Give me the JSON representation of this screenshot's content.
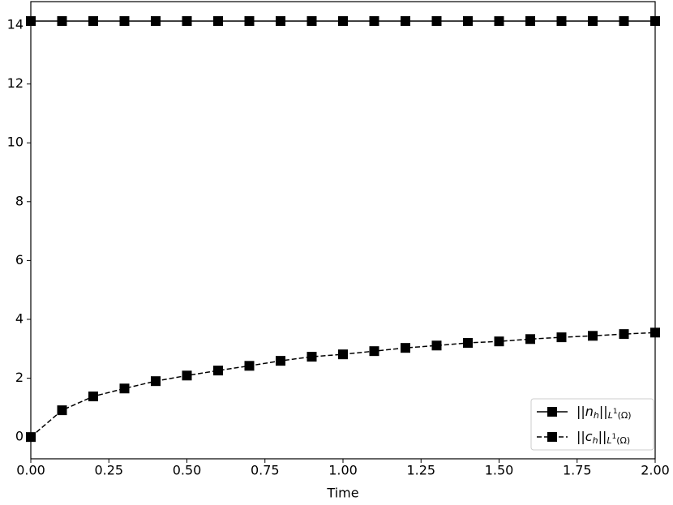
{
  "chart_data": {
    "type": "line",
    "xlabel": "Time",
    "x": [
      0,
      0.1,
      0.2,
      0.3,
      0.4,
      0.5,
      0.6,
      0.7,
      0.8,
      0.9,
      1.0,
      1.1,
      1.2,
      1.3,
      1.4,
      1.5,
      1.6,
      1.7,
      1.8,
      1.9,
      2.0
    ],
    "series": [
      {
        "name": "||n_h||_{L^1(Ω)}",
        "color": "#000000",
        "dash": "solid",
        "values": [
          14.14,
          14.14,
          14.14,
          14.14,
          14.14,
          14.14,
          14.14,
          14.14,
          14.14,
          14.14,
          14.14,
          14.14,
          14.14,
          14.14,
          14.14,
          14.14,
          14.14,
          14.14,
          14.14,
          14.14,
          14.14
        ]
      },
      {
        "name": "||c_h||_{L^1(Ω)}",
        "color": "#000000",
        "dash": "dashed",
        "values": [
          0,
          0.91,
          1.38,
          1.65,
          1.9,
          2.09,
          2.26,
          2.42,
          2.59,
          2.73,
          2.81,
          2.92,
          3.03,
          3.11,
          3.2,
          3.25,
          3.33,
          3.39,
          3.44,
          3.5,
          3.55
        ]
      }
    ],
    "xlim": [
      0,
      2.0
    ],
    "ylim": [
      -0.74,
      14.8
    ],
    "xticks": [
      {
        "value": 0,
        "label": "0.00"
      },
      0.25,
      {
        "value": 0.5,
        "label": "0.50"
      },
      0.75,
      {
        "value": 1.0,
        "label": "1.00"
      },
      1.25,
      {
        "value": 1.5,
        "label": "1.50"
      },
      1.75,
      {
        "value": 2.0,
        "label": "2.00"
      }
    ],
    "yticks": [
      0,
      2,
      4,
      6,
      8,
      10,
      12,
      14
    ],
    "legend": "lower right",
    "marker": "square"
  }
}
